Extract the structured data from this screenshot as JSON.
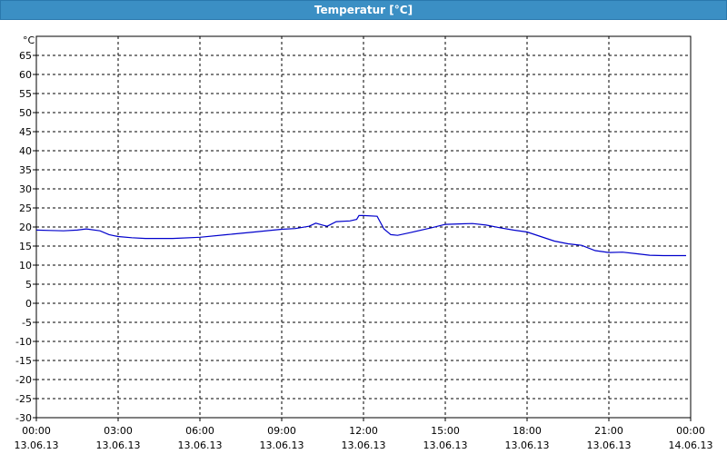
{
  "window": {
    "title": "Temperatur [°C]"
  },
  "chart_data": {
    "type": "line",
    "unit": "°C",
    "ylim": [
      -30,
      70
    ],
    "yticks": [
      65,
      60,
      55,
      50,
      45,
      40,
      35,
      30,
      25,
      20,
      15,
      10,
      5,
      0,
      -5,
      -10,
      -15,
      -20,
      -25,
      -30
    ],
    "xlim": [
      "13.06.13 00:00",
      "14.06.13 00:00"
    ],
    "xticks": [
      {
        "time": "00:00",
        "date": "13.06.13"
      },
      {
        "time": "03:00",
        "date": "13.06.13"
      },
      {
        "time": "06:00",
        "date": "13.06.13"
      },
      {
        "time": "09:00",
        "date": "13.06.13"
      },
      {
        "time": "12:00",
        "date": "13.06.13"
      },
      {
        "time": "15:00",
        "date": "13.06.13"
      },
      {
        "time": "18:00",
        "date": "13.06.13"
      },
      {
        "time": "21:00",
        "date": "13.06.13"
      },
      {
        "time": "00:00",
        "date": "14.06.13"
      }
    ],
    "grid": true,
    "series": [
      {
        "color": "#0000cc",
        "points": [
          [
            "13.06.13 00:00",
            19.2
          ],
          [
            "13.06.13 00:30",
            19.1
          ],
          [
            "13.06.13 01:00",
            19.0
          ],
          [
            "13.06.13 01:30",
            19.2
          ],
          [
            "13.06.13 01:50",
            19.5
          ],
          [
            "13.06.13 02:20",
            19.0
          ],
          [
            "13.06.13 02:40",
            18.0
          ],
          [
            "13.06.13 03:00",
            17.5
          ],
          [
            "13.06.13 03:30",
            17.2
          ],
          [
            "13.06.13 04:00",
            17.0
          ],
          [
            "13.06.13 05:00",
            17.0
          ],
          [
            "13.06.13 06:00",
            17.3
          ],
          [
            "13.06.13 07:00",
            18.0
          ],
          [
            "13.06.13 08:00",
            18.7
          ],
          [
            "13.06.13 09:00",
            19.4
          ],
          [
            "13.06.13 09:30",
            19.6
          ],
          [
            "13.06.13 10:00",
            20.2
          ],
          [
            "13.06.13 10:15",
            21.0
          ],
          [
            "13.06.13 10:30",
            20.5
          ],
          [
            "13.06.13 10:40",
            20.2
          ],
          [
            "13.06.13 11:00",
            21.4
          ],
          [
            "13.06.13 11:30",
            21.6
          ],
          [
            "13.06.13 11:45",
            22.0
          ],
          [
            "13.06.13 11:50",
            23.0
          ],
          [
            "13.06.13 12:00",
            23.0
          ],
          [
            "13.06.13 12:30",
            22.8
          ],
          [
            "13.06.13 12:45",
            19.5
          ],
          [
            "13.06.13 13:00",
            18.0
          ],
          [
            "13.06.13 13:15",
            17.8
          ],
          [
            "13.06.13 13:45",
            18.6
          ],
          [
            "13.06.13 14:30",
            19.8
          ],
          [
            "13.06.13 15:00",
            20.7
          ],
          [
            "13.06.13 15:30",
            20.8
          ],
          [
            "13.06.13 16:00",
            20.9
          ],
          [
            "13.06.13 16:30",
            20.5
          ],
          [
            "13.06.13 17:00",
            19.8
          ],
          [
            "13.06.13 17:30",
            19.2
          ],
          [
            "13.06.13 18:00",
            18.7
          ],
          [
            "13.06.13 18:30",
            17.5
          ],
          [
            "13.06.13 19:00",
            16.3
          ],
          [
            "13.06.13 19:30",
            15.6
          ],
          [
            "13.06.13 20:00",
            15.2
          ],
          [
            "13.06.13 20:30",
            13.8
          ],
          [
            "13.06.13 21:00",
            13.3
          ],
          [
            "13.06.13 21:30",
            13.4
          ],
          [
            "13.06.13 22:00",
            13.0
          ],
          [
            "13.06.13 22:30",
            12.6
          ],
          [
            "13.06.13 23:00",
            12.5
          ],
          [
            "13.06.13 23:50",
            12.5
          ]
        ]
      }
    ]
  }
}
